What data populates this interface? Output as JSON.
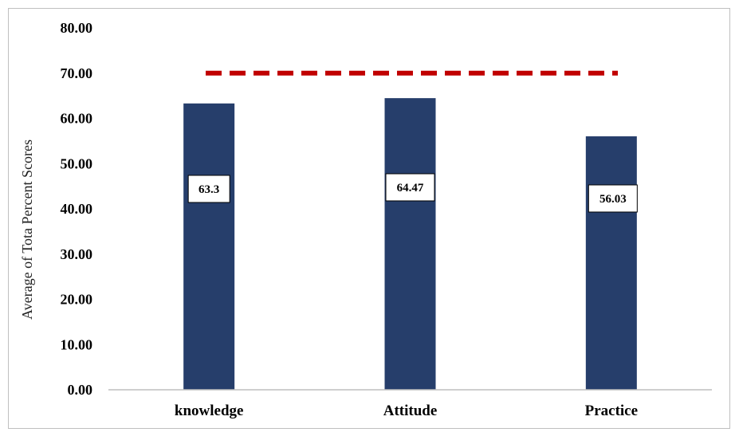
{
  "chart_data": {
    "type": "bar",
    "title": "",
    "xlabel": "",
    "ylabel": "Average of Tota Percent Scores",
    "categories": [
      "knowledge",
      "Attitude",
      "Practice"
    ],
    "values": [
      63.3,
      64.47,
      56.03
    ],
    "data_labels": [
      "63.3",
      "64.47",
      "56.03"
    ],
    "ylim": [
      0,
      80
    ],
    "yticks": [
      "0.00",
      "10.00",
      "20.00",
      "30.00",
      "40.00",
      "50.00",
      "60.00",
      "70.00",
      "80.00"
    ],
    "reference_line": {
      "value": 70,
      "style": "dashed"
    },
    "grid": false,
    "legend": "none",
    "colors": {
      "bar": "#263e6b",
      "reference_line": "#c00000"
    }
  }
}
